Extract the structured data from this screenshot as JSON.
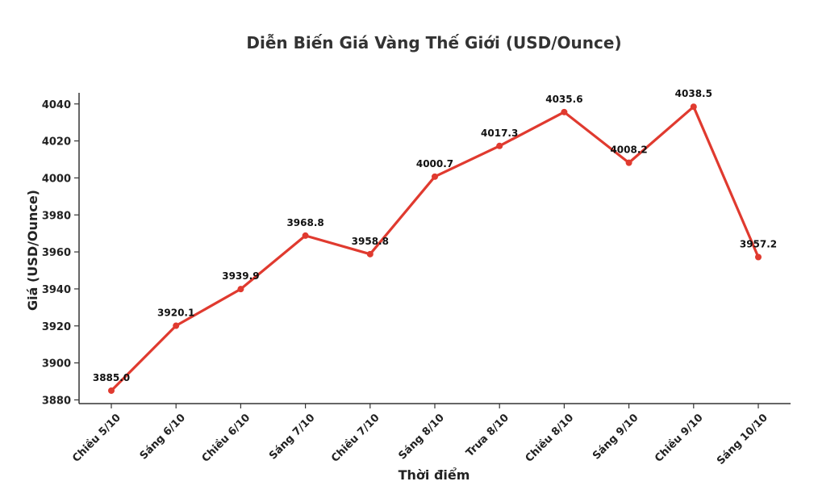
{
  "chart_data": {
    "type": "line",
    "title": "Diễn Biến Giá Vàng Thế Giới (USD/Ounce)",
    "xlabel": "Thời điểm",
    "ylabel": "Giá (USD/Ounce)",
    "categories": [
      "Chiều 5/10",
      "Sáng 6/10",
      "Chiều 6/10",
      "Sáng 7/10",
      "Chiều 7/10",
      "Sáng 8/10",
      "Trưa 8/10",
      "Chiều 8/10",
      "Sáng 9/10",
      "Chiều 9/10",
      "Sáng 10/10"
    ],
    "values": [
      3885.0,
      3920.1,
      3939.9,
      3968.8,
      3958.8,
      4000.7,
      4017.3,
      4035.6,
      4008.2,
      4038.5,
      3957.2
    ],
    "value_labels": [
      "3885.0",
      "3920.1",
      "3939.9",
      "3968.8",
      "3958.8",
      "4000.7",
      "4017.3",
      "4035.6",
      "4008.2",
      "4038.5",
      "3957.2"
    ],
    "y_ticks": [
      3880,
      3900,
      3920,
      3940,
      3960,
      3980,
      4000,
      4020,
      4040
    ],
    "y_tick_labels": [
      "3880",
      "3900",
      "3920",
      "3940",
      "3960",
      "3980",
      "4000",
      "4020",
      "4040"
    ],
    "ylim": [
      3878,
      4046
    ],
    "grid": false,
    "legend": "none",
    "line_color": "#e03a2f",
    "axis_color": "#333333"
  }
}
